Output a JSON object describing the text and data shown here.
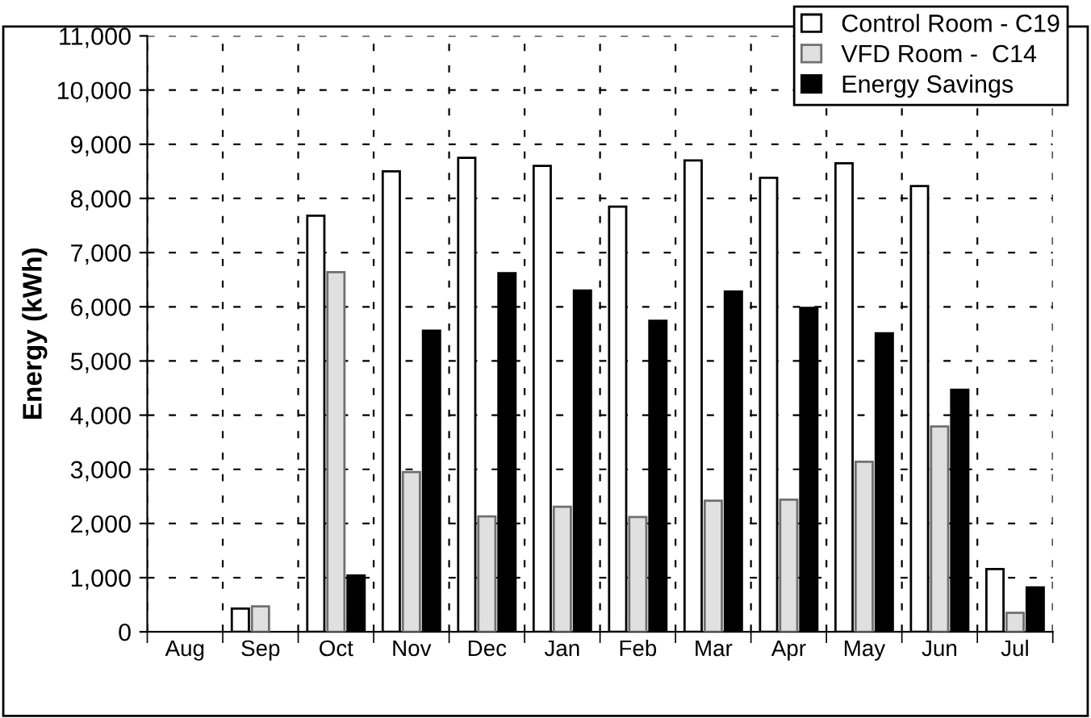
{
  "chart_data": {
    "type": "bar",
    "ylabel": "Energy (kWh)",
    "categories": [
      "Aug",
      "Sep",
      "Oct",
      "Nov",
      "Dec",
      "Jan",
      "Feb",
      "Mar",
      "Apr",
      "May",
      "Jun",
      "Jul"
    ],
    "series": [
      {
        "name": "Control Room - C19",
        "color": "#ffffff",
        "values": [
          null,
          430,
          7680,
          8500,
          8750,
          8600,
          7850,
          8700,
          8380,
          8650,
          8230,
          1160
        ]
      },
      {
        "name": "VFD Room -  C14",
        "color": "#e0e0e0",
        "values": [
          null,
          470,
          6640,
          2950,
          2130,
          2310,
          2120,
          2420,
          2440,
          3140,
          3790,
          350
        ]
      },
      {
        "name": "Energy Savings",
        "color": "#000000",
        "values": [
          null,
          null,
          1040,
          5560,
          6620,
          6300,
          5740,
          6280,
          5980,
          5510,
          4470,
          820
        ]
      }
    ],
    "ylim": [
      0,
      11000
    ],
    "yticks": [
      {
        "value": 0,
        "label": "0"
      },
      {
        "value": 1000,
        "label": "1,000"
      },
      {
        "value": 2000,
        "label": "2,000"
      },
      {
        "value": 3000,
        "label": "3,000"
      },
      {
        "value": 4000,
        "label": "4,000"
      },
      {
        "value": 5000,
        "label": "5,000"
      },
      {
        "value": 6000,
        "label": "6,000"
      },
      {
        "value": 7000,
        "label": "7,000"
      },
      {
        "value": 8000,
        "label": "8,000"
      },
      {
        "value": 9000,
        "label": "9,000"
      },
      {
        "value": 10000,
        "label": "10,000"
      },
      {
        "value": 11000,
        "label": "11,000"
      }
    ],
    "grid": true,
    "legend": "top right"
  }
}
